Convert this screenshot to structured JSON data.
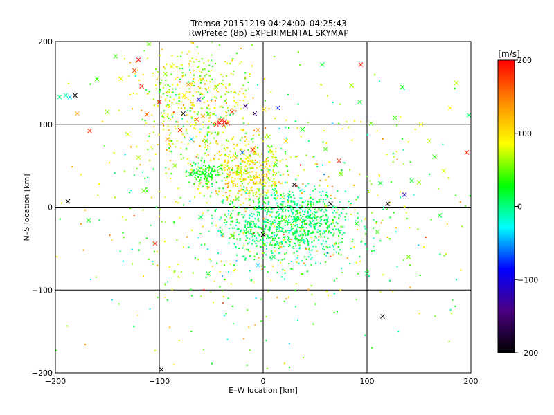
{
  "chart_data": {
    "type": "scatter",
    "title": "Tromsø 20151219 04:24:00–04:25:43",
    "subtitle": "RwPretec (8p) EXPERIMENTAL SKYMAP",
    "xlabel": "E–W location [km]",
    "ylabel": "N–S location [km]",
    "xlim": [
      -200,
      200
    ],
    "ylim": [
      -200,
      200
    ],
    "xticks": [
      -200,
      -100,
      0,
      100,
      200
    ],
    "yticks": [
      -200,
      -100,
      0,
      100,
      200
    ],
    "xtick_labels": [
      "−200",
      "−100",
      "0",
      "100",
      "200"
    ],
    "ytick_labels": [
      "−200",
      "−100",
      "0",
      "100",
      "200"
    ],
    "grid": true,
    "colorbar": {
      "label": "[m/s]",
      "range": [
        -200,
        200
      ],
      "ticks": [
        200,
        100,
        0,
        -100,
        -200
      ],
      "tick_labels": [
        "200",
        "100",
        "0",
        "−100",
        "−200"
      ],
      "colormap": [
        "#000000",
        "#4b0082",
        "#0000ff",
        "#00ffff",
        "#00ff00",
        "#ffff00",
        "#ff8c00",
        "#ff0000"
      ]
    },
    "series": [
      {
        "marker": "x",
        "points": [
          [
            -196,
            133,
            0
          ],
          [
            -190,
            135,
            -10
          ],
          [
            -186,
            133,
            -40
          ],
          [
            -181,
            135,
            -200
          ],
          [
            -188,
            7,
            -200
          ],
          [
            -167,
            92,
            180
          ],
          [
            -179,
            113,
            130
          ],
          [
            -168,
            -16,
            30
          ],
          [
            -142,
            182,
            40
          ],
          [
            -137,
            155,
            80
          ],
          [
            -124,
            165,
            170
          ],
          [
            -120,
            178,
            200
          ],
          [
            -117,
            146,
            190
          ],
          [
            -112,
            112,
            160
          ],
          [
            -110,
            197,
            50
          ],
          [
            -104,
            -44,
            190
          ],
          [
            -100,
            127,
            200
          ],
          [
            -98,
            -196,
            -200
          ],
          [
            -94,
            161,
            60
          ],
          [
            -92,
            82,
            140
          ],
          [
            -88,
            170,
            80
          ],
          [
            -80,
            93,
            180
          ],
          [
            -77,
            113,
            -200
          ],
          [
            -76,
            135,
            90
          ],
          [
            -72,
            148,
            140
          ],
          [
            -69,
            82,
            -40
          ],
          [
            -64,
            106,
            160
          ],
          [
            -62,
            130,
            -100
          ],
          [
            -58,
            110,
            130
          ],
          [
            -53,
            112,
            40
          ],
          [
            -45,
            100,
            190
          ],
          [
            -42,
            102,
            200
          ],
          [
            -40,
            105,
            180
          ],
          [
            -38,
            99,
            170
          ],
          [
            -37,
            103,
            200
          ],
          [
            -34,
            101,
            180
          ],
          [
            -20,
            66,
            -60
          ],
          [
            -17,
            122,
            -150
          ],
          [
            -15,
            60,
            80
          ],
          [
            -10,
            69,
            190
          ],
          [
            -8,
            113,
            -130
          ],
          [
            -5,
            93,
            130
          ],
          [
            1,
            118,
            100
          ],
          [
            5,
            85,
            60
          ],
          [
            12,
            51,
            30
          ],
          [
            14,
            120,
            -80
          ],
          [
            22,
            80,
            110
          ],
          [
            30,
            27,
            -200
          ],
          [
            38,
            94,
            30
          ],
          [
            44,
            -12,
            10
          ],
          [
            57,
            172,
            20
          ],
          [
            65,
            4,
            -200
          ],
          [
            73,
            56,
            190
          ],
          [
            85,
            147,
            60
          ],
          [
            93,
            127,
            20
          ],
          [
            94,
            172,
            190
          ],
          [
            104,
            101,
            50
          ],
          [
            113,
            29,
            20
          ],
          [
            115,
            -132,
            -200
          ],
          [
            120,
            4,
            -200
          ],
          [
            127,
            108,
            40
          ],
          [
            134,
            145,
            20
          ],
          [
            136,
            15,
            -110
          ],
          [
            143,
            32,
            20
          ],
          [
            152,
            100,
            80
          ],
          [
            165,
            61,
            40
          ],
          [
            174,
            44,
            80
          ],
          [
            186,
            150,
            70
          ],
          [
            196,
            66,
            190
          ],
          [
            198,
            111,
            10
          ],
          [
            -15,
            -30,
            30
          ],
          [
            0,
            -33,
            -200
          ],
          [
            10,
            -60,
            10
          ],
          [
            -53,
            -80,
            20
          ],
          [
            -30,
            -35,
            60
          ],
          [
            -60,
            -12,
            10
          ],
          [
            -25,
            10,
            40
          ],
          [
            20,
            -15,
            50
          ],
          [
            35,
            -40,
            20
          ],
          [
            -5,
            -70,
            -40
          ],
          [
            -30,
            115,
            170
          ],
          [
            -45,
            145,
            60
          ],
          [
            -55,
            80,
            40
          ],
          [
            -70,
            40,
            20
          ],
          [
            -85,
            50,
            60
          ],
          [
            -160,
            155,
            40
          ],
          [
            -150,
            115,
            60
          ],
          [
            -130,
            88,
            80
          ],
          [
            -120,
            60,
            70
          ],
          [
            -115,
            20,
            50
          ],
          [
            60,
            70,
            40
          ],
          [
            75,
            40,
            50
          ],
          [
            90,
            -20,
            30
          ],
          [
            110,
            -30,
            40
          ],
          [
            150,
            30,
            60
          ],
          [
            160,
            80,
            70
          ],
          [
            180,
            120,
            90
          ],
          [
            170,
            -10,
            20
          ],
          [
            140,
            -60,
            50
          ],
          [
            100,
            -80,
            10
          ]
        ]
      }
    ],
    "background_points_note": ""
  }
}
